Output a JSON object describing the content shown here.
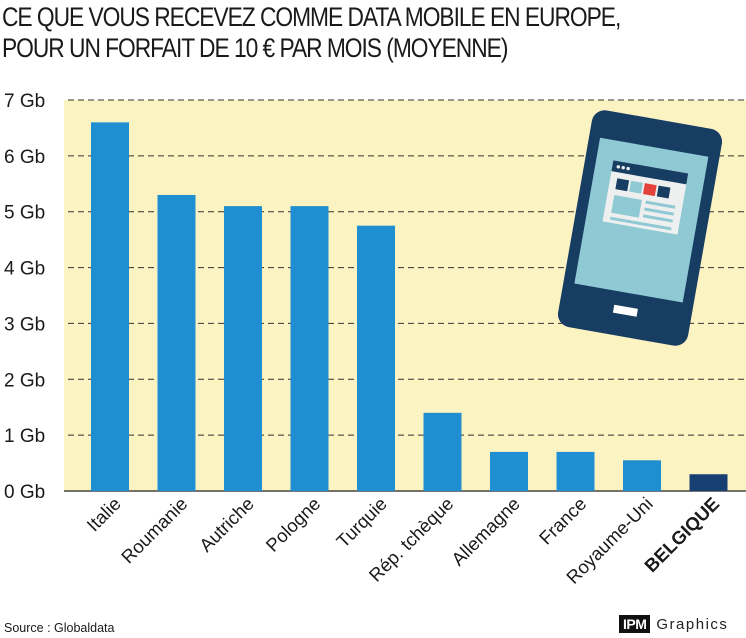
{
  "title": {
    "line1": "CE QUE VOUS RECEVEZ COMME DATA MOBILE EN EUROPE,",
    "line2": "POUR UN FORFAIT DE 10 € PAR MOIS (MOYENNE)"
  },
  "footer": {
    "source": "Source : Globaldata",
    "brand_box": "IPM",
    "brand_text": "Graphics"
  },
  "colors": {
    "plot_background": "#fcf3c2",
    "bar": "#1f8fd1",
    "bar_highlight": "#173f72",
    "grid": "#333333"
  },
  "illustration": {
    "icon": "smartphone-icon"
  },
  "chart_data": {
    "type": "bar",
    "categories": [
      "Italie",
      "Roumanie",
      "Autriche",
      "Pologne",
      "Turquie",
      "Rép. tchèque",
      "Allemagne",
      "France",
      "Royaume-Uni",
      "BELGIQUE"
    ],
    "values": [
      6.6,
      5.3,
      5.1,
      5.1,
      4.75,
      1.4,
      0.7,
      0.7,
      0.55,
      0.3
    ],
    "highlight": "BELGIQUE",
    "yticks": [
      0,
      1,
      2,
      3,
      4,
      5,
      6,
      7
    ],
    "ytick_labels": [
      "0 Gb",
      "1 Gb",
      "2 Gb",
      "3 Gb",
      "4 Gb",
      "5 Gb",
      "6 Gb",
      "7 Gb"
    ],
    "ylim": [
      0,
      7
    ],
    "grid": true,
    "grid_style": "dashed",
    "xlabel": "",
    "ylabel": ""
  }
}
